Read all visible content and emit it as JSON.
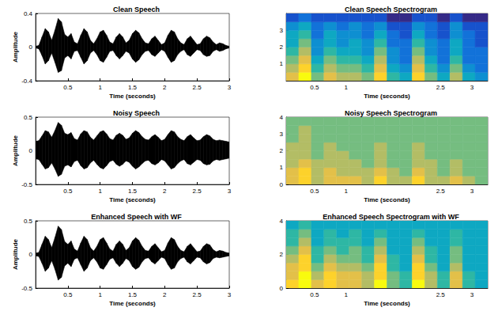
{
  "chart_data": [
    {
      "type": "waveform",
      "title": "Clean Speech",
      "xlabel": "Time (seconds)",
      "ylabel": "Amplitude",
      "color": "#000000",
      "grid": false,
      "xlim": [
        0,
        3
      ],
      "xticks": [
        0.5,
        1,
        1.5,
        2,
        2.5,
        3
      ],
      "ylim": [
        -0.4,
        0.4
      ],
      "yticks": [
        -0.4,
        0,
        0.4
      ],
      "x": [
        0,
        0.05,
        0.1,
        0.15,
        0.2,
        0.25,
        0.3,
        0.35,
        0.4,
        0.45,
        0.5,
        0.55,
        0.6,
        0.65,
        0.7,
        0.75,
        0.8,
        0.85,
        0.9,
        0.95,
        1,
        1.05,
        1.1,
        1.15,
        1.2,
        1.25,
        1.3,
        1.35,
        1.4,
        1.45,
        1.5,
        1.55,
        1.6,
        1.65,
        1.7,
        1.75,
        1.8,
        1.85,
        1.9,
        1.95,
        2,
        2.05,
        2.1,
        2.15,
        2.2,
        2.25,
        2.3,
        2.35,
        2.4,
        2.45,
        2.5,
        2.55,
        2.6,
        2.65,
        2.7,
        2.75,
        2.8,
        2.85,
        2.9,
        2.95,
        3
      ],
      "upper": [
        0.01,
        0.02,
        0.12,
        0.22,
        0.18,
        0.08,
        0.2,
        0.34,
        0.3,
        0.15,
        0.12,
        0.16,
        0.06,
        0.04,
        0.14,
        0.22,
        0.18,
        0.08,
        0.04,
        0.1,
        0.18,
        0.2,
        0.14,
        0.06,
        0.04,
        0.12,
        0.16,
        0.12,
        0.05,
        0.08,
        0.16,
        0.2,
        0.17,
        0.1,
        0.05,
        0.04,
        0.1,
        0.13,
        0.08,
        0.03,
        0.05,
        0.14,
        0.2,
        0.18,
        0.1,
        0.05,
        0.03,
        0.1,
        0.13,
        0.08,
        0.03,
        0.04,
        0.1,
        0.13,
        0.11,
        0.06,
        0.03,
        0.05,
        0.04,
        0.02,
        0.01
      ],
      "lower": [
        -0.01,
        -0.02,
        -0.1,
        -0.2,
        -0.16,
        -0.07,
        -0.18,
        -0.3,
        -0.28,
        -0.13,
        -0.1,
        -0.14,
        -0.05,
        -0.04,
        -0.12,
        -0.2,
        -0.16,
        -0.07,
        -0.04,
        -0.09,
        -0.16,
        -0.18,
        -0.12,
        -0.05,
        -0.04,
        -0.1,
        -0.14,
        -0.1,
        -0.05,
        -0.07,
        -0.14,
        -0.18,
        -0.15,
        -0.09,
        -0.05,
        -0.04,
        -0.09,
        -0.11,
        -0.07,
        -0.03,
        -0.05,
        -0.12,
        -0.18,
        -0.16,
        -0.09,
        -0.05,
        -0.03,
        -0.09,
        -0.11,
        -0.07,
        -0.03,
        -0.04,
        -0.09,
        -0.11,
        -0.1,
        -0.05,
        -0.03,
        -0.05,
        -0.04,
        -0.02,
        -0.01
      ]
    },
    {
      "type": "heatmap",
      "title": "Clean Speech Spectrogram",
      "xlabel": "Time (seconds)",
      "grid": false,
      "xlim": [
        0.05,
        3.25
      ],
      "xticks": [
        0.5,
        1,
        2.5,
        3
      ],
      "ylim": [
        0,
        4
      ],
      "yticks": [
        1,
        2,
        3
      ],
      "zlim": [
        0,
        10
      ],
      "x_edges": [
        0.05,
        0.25,
        0.45,
        0.65,
        0.85,
        1.05,
        1.25,
        1.45,
        1.65,
        1.85,
        2.05,
        2.25,
        2.45,
        2.65,
        2.85,
        3.05,
        3.25
      ],
      "y_edges": [
        0,
        0.5,
        1,
        1.5,
        2,
        2.5,
        3,
        3.5,
        4
      ],
      "z": [
        [
          8,
          10,
          6,
          8,
          7,
          7,
          6,
          9,
          5,
          4,
          9,
          6,
          4,
          7,
          4,
          3
        ],
        [
          7,
          9,
          5,
          7,
          6,
          6,
          5,
          8,
          4,
          3,
          8,
          5,
          3,
          6,
          3,
          2
        ],
        [
          6,
          8,
          4,
          6,
          5,
          5,
          4,
          7,
          3,
          2,
          7,
          4,
          2,
          5,
          2,
          2
        ],
        [
          5,
          7,
          3,
          5,
          4,
          4,
          3,
          6,
          3,
          2,
          6,
          3,
          2,
          4,
          2,
          2
        ],
        [
          4,
          6,
          3,
          4,
          3,
          4,
          3,
          5,
          2,
          2,
          5,
          3,
          2,
          4,
          2,
          1
        ],
        [
          4,
          5,
          2,
          4,
          3,
          3,
          2,
          4,
          2,
          1,
          4,
          2,
          1,
          3,
          2,
          1
        ],
        [
          3,
          4,
          2,
          3,
          2,
          3,
          2,
          3,
          1,
          1,
          3,
          2,
          1,
          3,
          1,
          1
        ],
        [
          1,
          2,
          1,
          1,
          1,
          1,
          1,
          1,
          0,
          0,
          1,
          1,
          0,
          1,
          0,
          0
        ]
      ]
    },
    {
      "type": "waveform",
      "title": "Noisy Speech",
      "xlabel": "Time (seconds)",
      "ylabel": "Amplitude",
      "color": "#000000",
      "grid": false,
      "xlim": [
        0,
        3
      ],
      "xticks": [
        0.5,
        1,
        1.5,
        2,
        2.5,
        3
      ],
      "ylim": [
        -0.5,
        0.5
      ],
      "yticks": [
        -0.5,
        0,
        0.5
      ],
      "x": [
        0,
        0.05,
        0.1,
        0.15,
        0.2,
        0.25,
        0.3,
        0.35,
        0.4,
        0.45,
        0.5,
        0.55,
        0.6,
        0.65,
        0.7,
        0.75,
        0.8,
        0.85,
        0.9,
        0.95,
        1,
        1.05,
        1.1,
        1.15,
        1.2,
        1.25,
        1.3,
        1.35,
        1.4,
        1.45,
        1.5,
        1.55,
        1.6,
        1.65,
        1.7,
        1.75,
        1.8,
        1.85,
        1.9,
        1.95,
        2,
        2.05,
        2.1,
        2.15,
        2.2,
        2.25,
        2.3,
        2.35,
        2.4,
        2.45,
        2.5,
        2.55,
        2.6,
        2.65,
        2.7,
        2.75,
        2.8,
        2.85,
        2.9,
        2.95,
        3
      ],
      "upper": [
        0.14,
        0.15,
        0.22,
        0.3,
        0.28,
        0.2,
        0.3,
        0.42,
        0.38,
        0.26,
        0.24,
        0.27,
        0.18,
        0.16,
        0.25,
        0.3,
        0.28,
        0.2,
        0.16,
        0.22,
        0.28,
        0.3,
        0.25,
        0.18,
        0.16,
        0.23,
        0.26,
        0.23,
        0.17,
        0.19,
        0.26,
        0.3,
        0.27,
        0.21,
        0.17,
        0.16,
        0.21,
        0.24,
        0.2,
        0.15,
        0.17,
        0.24,
        0.3,
        0.28,
        0.21,
        0.17,
        0.15,
        0.21,
        0.24,
        0.19,
        0.15,
        0.16,
        0.21,
        0.24,
        0.22,
        0.17,
        0.15,
        0.16,
        0.15,
        0.14,
        0.13
      ],
      "lower": [
        -0.12,
        -0.13,
        -0.2,
        -0.27,
        -0.25,
        -0.18,
        -0.27,
        -0.38,
        -0.35,
        -0.23,
        -0.21,
        -0.24,
        -0.16,
        -0.14,
        -0.22,
        -0.27,
        -0.25,
        -0.18,
        -0.14,
        -0.2,
        -0.25,
        -0.27,
        -0.22,
        -0.16,
        -0.14,
        -0.2,
        -0.23,
        -0.2,
        -0.15,
        -0.17,
        -0.23,
        -0.27,
        -0.24,
        -0.19,
        -0.15,
        -0.14,
        -0.19,
        -0.21,
        -0.18,
        -0.13,
        -0.15,
        -0.21,
        -0.27,
        -0.25,
        -0.19,
        -0.15,
        -0.13,
        -0.19,
        -0.21,
        -0.17,
        -0.13,
        -0.14,
        -0.19,
        -0.21,
        -0.2,
        -0.15,
        -0.13,
        -0.14,
        -0.13,
        -0.12,
        -0.11
      ]
    },
    {
      "type": "heatmap",
      "title": "Noisy Speech Spectrogram",
      "xlabel": "Time (seconds)",
      "grid": false,
      "xlim": [
        0.05,
        3.25
      ],
      "xticks": [
        0.5,
        1,
        2.5,
        3
      ],
      "ylim": [
        0,
        4
      ],
      "yticks": [
        0,
        1,
        2,
        3,
        4
      ],
      "zlim": [
        0,
        10
      ],
      "x_edges": [
        0.05,
        0.25,
        0.45,
        0.65,
        0.85,
        1.05,
        1.25,
        1.45,
        1.65,
        1.85,
        2.05,
        2.25,
        2.45,
        2.65,
        2.85,
        3.05,
        3.25
      ],
      "y_edges": [
        0,
        0.5,
        1,
        1.5,
        2,
        2.5,
        3,
        3.5,
        4
      ],
      "z": [
        [
          8,
          9,
          7,
          8,
          8,
          8,
          7,
          9,
          7,
          7,
          9,
          7,
          7,
          8,
          7,
          6
        ],
        [
          8,
          9,
          7,
          8,
          7,
          7,
          7,
          8,
          7,
          6,
          8,
          7,
          6,
          7,
          6,
          6
        ],
        [
          7,
          8,
          7,
          7,
          7,
          7,
          6,
          7,
          6,
          6,
          7,
          7,
          6,
          7,
          6,
          6
        ],
        [
          7,
          7,
          6,
          7,
          7,
          6,
          6,
          7,
          6,
          6,
          7,
          6,
          6,
          6,
          6,
          6
        ],
        [
          7,
          7,
          6,
          7,
          6,
          6,
          6,
          7,
          6,
          6,
          7,
          6,
          6,
          6,
          6,
          6
        ],
        [
          6,
          7,
          6,
          6,
          6,
          6,
          6,
          6,
          6,
          6,
          6,
          6,
          6,
          6,
          6,
          6
        ],
        [
          6,
          7,
          6,
          6,
          6,
          6,
          6,
          6,
          6,
          6,
          6,
          6,
          6,
          6,
          6,
          6
        ],
        [
          6,
          6,
          6,
          6,
          6,
          6,
          6,
          6,
          6,
          6,
          6,
          6,
          6,
          6,
          6,
          6
        ]
      ]
    },
    {
      "type": "waveform",
      "title": "Enhanced Speech with WF",
      "xlabel": "Time (seconds)",
      "ylabel": "Amplitude",
      "color": "#000000",
      "grid": false,
      "xlim": [
        0,
        3
      ],
      "xticks": [
        0.5,
        1,
        1.5,
        2,
        2.5,
        3
      ],
      "ylim": [
        -0.5,
        0.5
      ],
      "yticks": [
        -0.5,
        0,
        0.5
      ],
      "x": [
        0,
        0.05,
        0.1,
        0.15,
        0.2,
        0.25,
        0.3,
        0.35,
        0.4,
        0.45,
        0.5,
        0.55,
        0.6,
        0.65,
        0.7,
        0.75,
        0.8,
        0.85,
        0.9,
        0.95,
        1,
        1.05,
        1.1,
        1.15,
        1.2,
        1.25,
        1.3,
        1.35,
        1.4,
        1.45,
        1.5,
        1.55,
        1.6,
        1.65,
        1.7,
        1.75,
        1.8,
        1.85,
        1.9,
        1.95,
        2,
        2.05,
        2.1,
        2.15,
        2.2,
        2.25,
        2.3,
        2.35,
        2.4,
        2.45,
        2.5,
        2.55,
        2.6,
        2.65,
        2.7,
        2.75,
        2.8,
        2.85,
        2.9,
        2.95,
        3
      ],
      "upper": [
        0.02,
        0.03,
        0.15,
        0.27,
        0.22,
        0.1,
        0.25,
        0.42,
        0.37,
        0.19,
        0.15,
        0.2,
        0.08,
        0.05,
        0.17,
        0.27,
        0.22,
        0.1,
        0.05,
        0.12,
        0.22,
        0.25,
        0.17,
        0.08,
        0.05,
        0.15,
        0.2,
        0.15,
        0.06,
        0.1,
        0.2,
        0.25,
        0.21,
        0.12,
        0.06,
        0.05,
        0.12,
        0.16,
        0.1,
        0.04,
        0.06,
        0.17,
        0.25,
        0.22,
        0.12,
        0.06,
        0.04,
        0.12,
        0.16,
        0.1,
        0.04,
        0.05,
        0.12,
        0.16,
        0.14,
        0.07,
        0.04,
        0.06,
        0.05,
        0.03,
        0.02
      ],
      "lower": [
        -0.02,
        -0.03,
        -0.13,
        -0.25,
        -0.2,
        -0.09,
        -0.22,
        -0.38,
        -0.34,
        -0.17,
        -0.13,
        -0.18,
        -0.07,
        -0.05,
        -0.15,
        -0.25,
        -0.2,
        -0.09,
        -0.05,
        -0.11,
        -0.2,
        -0.22,
        -0.15,
        -0.07,
        -0.05,
        -0.13,
        -0.18,
        -0.13,
        -0.06,
        -0.09,
        -0.18,
        -0.22,
        -0.19,
        -0.11,
        -0.06,
        -0.05,
        -0.11,
        -0.14,
        -0.09,
        -0.04,
        -0.06,
        -0.15,
        -0.22,
        -0.2,
        -0.11,
        -0.06,
        -0.04,
        -0.11,
        -0.14,
        -0.09,
        -0.04,
        -0.05,
        -0.11,
        -0.14,
        -0.12,
        -0.06,
        -0.04,
        -0.05,
        -0.04,
        -0.03,
        -0.02
      ]
    },
    {
      "type": "heatmap",
      "title": "Enhanced Speech Spectrogram with WF",
      "xlabel": "Time (seconds)",
      "grid": false,
      "xlim": [
        0.05,
        3.25
      ],
      "xticks": [
        0.5,
        1,
        2.5,
        3
      ],
      "ylim": [
        0,
        4
      ],
      "yticks": [
        0,
        2,
        4
      ],
      "zlim": [
        0,
        10
      ],
      "x_edges": [
        0.05,
        0.25,
        0.45,
        0.65,
        0.85,
        1.05,
        1.25,
        1.45,
        1.65,
        1.85,
        2.05,
        2.25,
        2.45,
        2.65,
        2.85,
        3.05,
        3.25
      ],
      "y_edges": [
        0,
        0.5,
        1,
        1.5,
        2,
        2.5,
        3,
        3.5,
        4
      ],
      "z": [
        [
          9,
          10,
          8,
          9,
          8,
          8,
          7,
          10,
          6,
          5,
          10,
          7,
          5,
          8,
          5,
          4
        ],
        [
          8,
          10,
          7,
          9,
          8,
          8,
          7,
          9,
          6,
          5,
          9,
          7,
          5,
          8,
          5,
          4
        ],
        [
          8,
          9,
          6,
          8,
          7,
          7,
          6,
          9,
          5,
          4,
          9,
          6,
          4,
          7,
          4,
          4
        ],
        [
          7,
          9,
          5,
          7,
          6,
          6,
          5,
          8,
          5,
          4,
          8,
          5,
          4,
          6,
          4,
          4
        ],
        [
          6,
          8,
          5,
          6,
          5,
          6,
          5,
          7,
          4,
          4,
          7,
          5,
          4,
          6,
          4,
          4
        ],
        [
          5,
          7,
          4,
          5,
          5,
          5,
          4,
          6,
          4,
          4,
          6,
          4,
          4,
          5,
          4,
          4
        ],
        [
          5,
          6,
          4,
          5,
          4,
          5,
          4,
          5,
          4,
          4,
          5,
          4,
          4,
          5,
          4,
          4
        ],
        [
          4,
          5,
          4,
          4,
          4,
          4,
          4,
          4,
          4,
          4,
          4,
          4,
          4,
          4,
          4,
          4
        ]
      ]
    }
  ]
}
